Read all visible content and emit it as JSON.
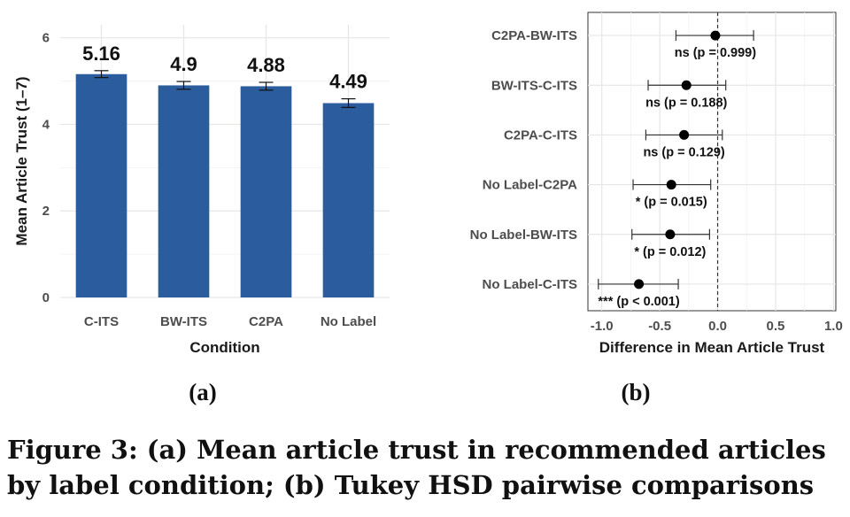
{
  "caption": "Figure 3: (a) Mean article trust in recommended articles by label condition; (b) Tukey HSD pairwise comparisons",
  "chart_data": [
    {
      "type": "bar",
      "panel_label": "(a)",
      "categories": [
        "C-ITS",
        "BW-ITS",
        "C2PA",
        "No Label"
      ],
      "values": [
        5.16,
        4.9,
        4.88,
        4.49
      ],
      "value_labels": [
        "5.16",
        "4.9",
        "4.88",
        "4.49"
      ],
      "error_low": [
        5.08,
        4.81,
        4.79,
        4.39
      ],
      "error_high": [
        5.24,
        4.99,
        4.97,
        4.59
      ],
      "xlabel": "Condition",
      "ylabel": "Mean Article Trust (1–7)",
      "ylim": [
        0,
        6.3
      ],
      "yticks": [
        0,
        2,
        4,
        6
      ],
      "ytick_labels": [
        "0",
        "2",
        "4",
        "6"
      ],
      "grid": true,
      "bar_color": "#2b5c9e"
    },
    {
      "type": "scatter",
      "panel_label": "(b)",
      "categories": [
        "C2PA-BW-ITS",
        "BW-ITS-C-ITS",
        "C2PA-C-ITS",
        "No Label-C2PA",
        "No Label-BW-ITS",
        "No Label-C-ITS"
      ],
      "estimates": [
        -0.02,
        -0.27,
        -0.29,
        -0.4,
        -0.41,
        -0.68
      ],
      "ci_low": [
        -0.36,
        -0.6,
        -0.62,
        -0.73,
        -0.74,
        -1.03
      ],
      "ci_high": [
        0.31,
        0.07,
        0.04,
        -0.06,
        -0.07,
        -0.34
      ],
      "point_labels": [
        "ns (p = 0.999)",
        "ns (p = 0.188)",
        "ns (p = 0.129)",
        "* (p = 0.015)",
        "* (p = 0.012)",
        "*** (p < 0.001)"
      ],
      "xlabel": "Difference in Mean Article Trust",
      "xlim": [
        -1.12,
        1.02
      ],
      "xticks": [
        -1.0,
        -0.5,
        0.0,
        0.5,
        1.0
      ],
      "xtick_labels": [
        "-1.0",
        "-0.5",
        "0.0",
        "0.5",
        "1.0"
      ],
      "reference_line": 0,
      "grid": true
    }
  ]
}
